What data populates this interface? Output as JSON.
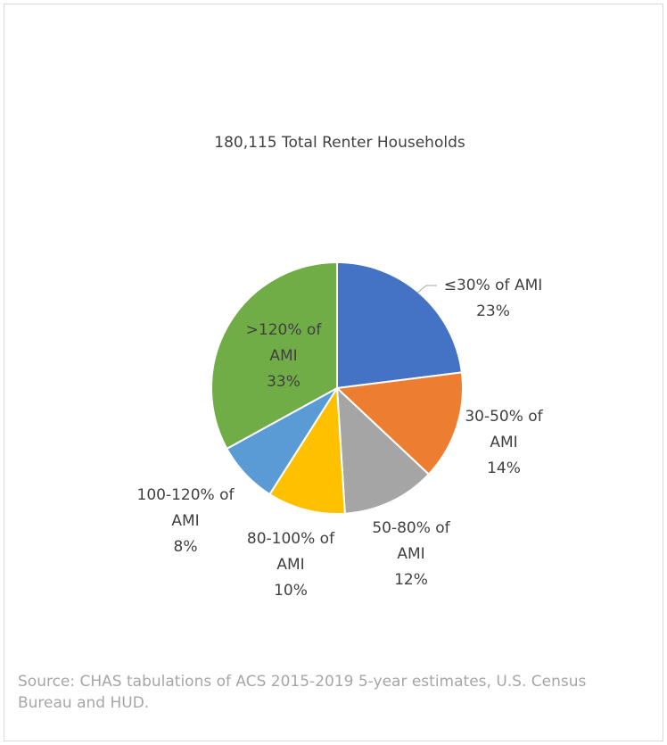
{
  "chart_data": {
    "type": "pie",
    "title": "180,115 Total Renter Households",
    "categories": [
      "≤30% of AMI",
      "30-50% of AMI",
      "50-80% of AMI",
      "80-100% of AMI",
      "100-120% of AMI",
      ">120% of AMI"
    ],
    "values": [
      23,
      14,
      12,
      10,
      8,
      33
    ],
    "value_labels": [
      "23%",
      "14%",
      "12%",
      "10%",
      "8%",
      "33%"
    ],
    "colors": [
      "#4472c4",
      "#ed7d31",
      "#a5a5a5",
      "#ffc000",
      "#5b9bd5",
      "#70ad47"
    ],
    "source": "Source: CHAS tabulations of ACS 2015-2019 5-year estimates, U.S. Census Bureau and HUD."
  }
}
